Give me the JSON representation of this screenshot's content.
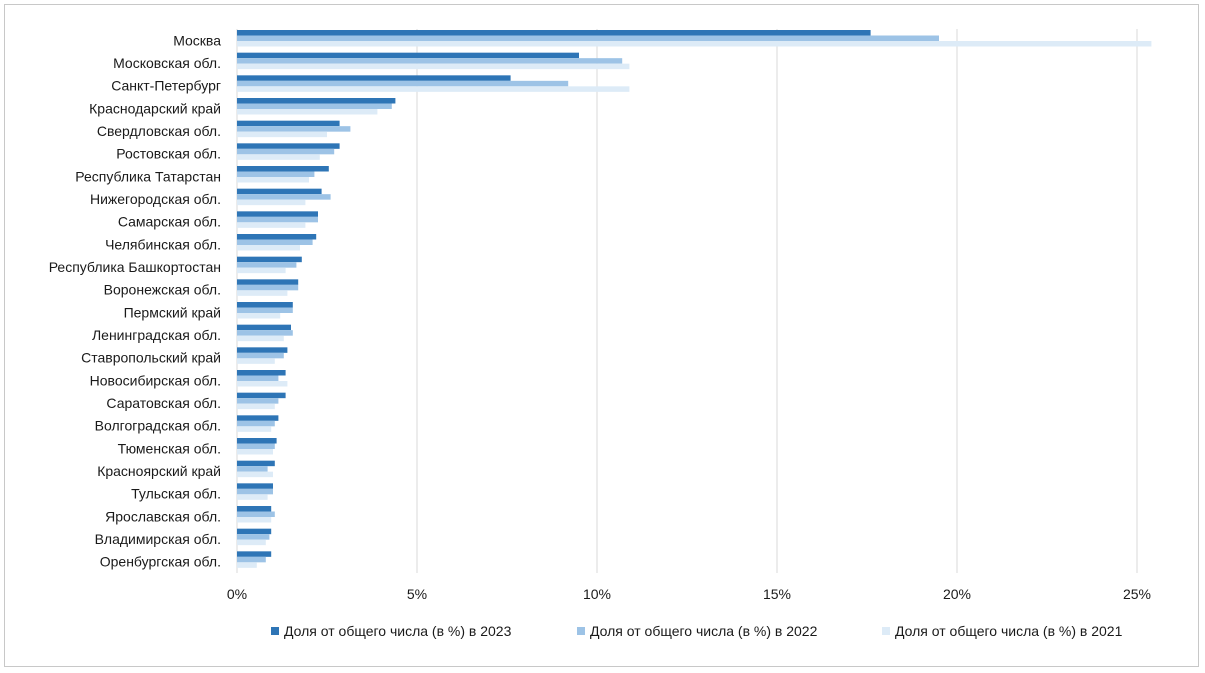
{
  "chart_data": {
    "type": "bar",
    "orientation": "horizontal",
    "categories": [
      "Москва",
      "Московская обл.",
      "Санкт-Петербург",
      "Краснодарский край",
      "Свердловская обл.",
      "Ростовская обл.",
      "Республика Татарстан",
      "Нижегородская обл.",
      "Самарская обл.",
      "Челябинская обл.",
      "Республика Башкортостан",
      "Воронежская обл.",
      "Пермский край",
      "Ленинградская обл.",
      "Ставропольский край",
      "Новосибирская обл.",
      "Саратовская обл.",
      "Волгоградская обл.",
      "Тюменская обл.",
      "Красноярский край",
      "Тульская обл.",
      "Ярославская обл.",
      "Владимирская обл.",
      "Оренбургская обл."
    ],
    "series": [
      {
        "name": "Доля от общего числа (в %) в 2023",
        "color": "#2e75b6",
        "values": [
          17.6,
          9.5,
          7.6,
          4.4,
          2.85,
          2.85,
          2.55,
          2.35,
          2.25,
          2.2,
          1.8,
          1.7,
          1.55,
          1.5,
          1.4,
          1.35,
          1.35,
          1.15,
          1.1,
          1.05,
          1.0,
          0.95,
          0.95,
          0.95
        ]
      },
      {
        "name": "Доля от общего числа (в %) в 2022",
        "color": "#9dc3e6",
        "values": [
          19.5,
          10.7,
          9.2,
          4.3,
          3.15,
          2.7,
          2.15,
          2.6,
          2.25,
          2.1,
          1.65,
          1.7,
          1.55,
          1.55,
          1.3,
          1.15,
          1.15,
          1.05,
          1.05,
          0.85,
          1.0,
          1.05,
          0.9,
          0.8
        ]
      },
      {
        "name": "Доля от общего числа (в %) в 2021",
        "color": "#ddebf7",
        "values": [
          25.4,
          10.9,
          10.9,
          3.9,
          2.5,
          2.3,
          2.0,
          1.9,
          1.9,
          1.75,
          1.35,
          1.4,
          1.2,
          1.3,
          1.05,
          1.4,
          1.05,
          0.95,
          1.0,
          1.0,
          0.85,
          0.95,
          0.8,
          0.55
        ]
      }
    ],
    "xlim": [
      0,
      25
    ],
    "xticks": [
      0,
      5,
      10,
      15,
      20,
      25
    ],
    "xtick_labels": [
      "0%",
      "5%",
      "10%",
      "15%",
      "20%",
      "25%"
    ],
    "grid": "vertical",
    "legend_position": "bottom"
  }
}
